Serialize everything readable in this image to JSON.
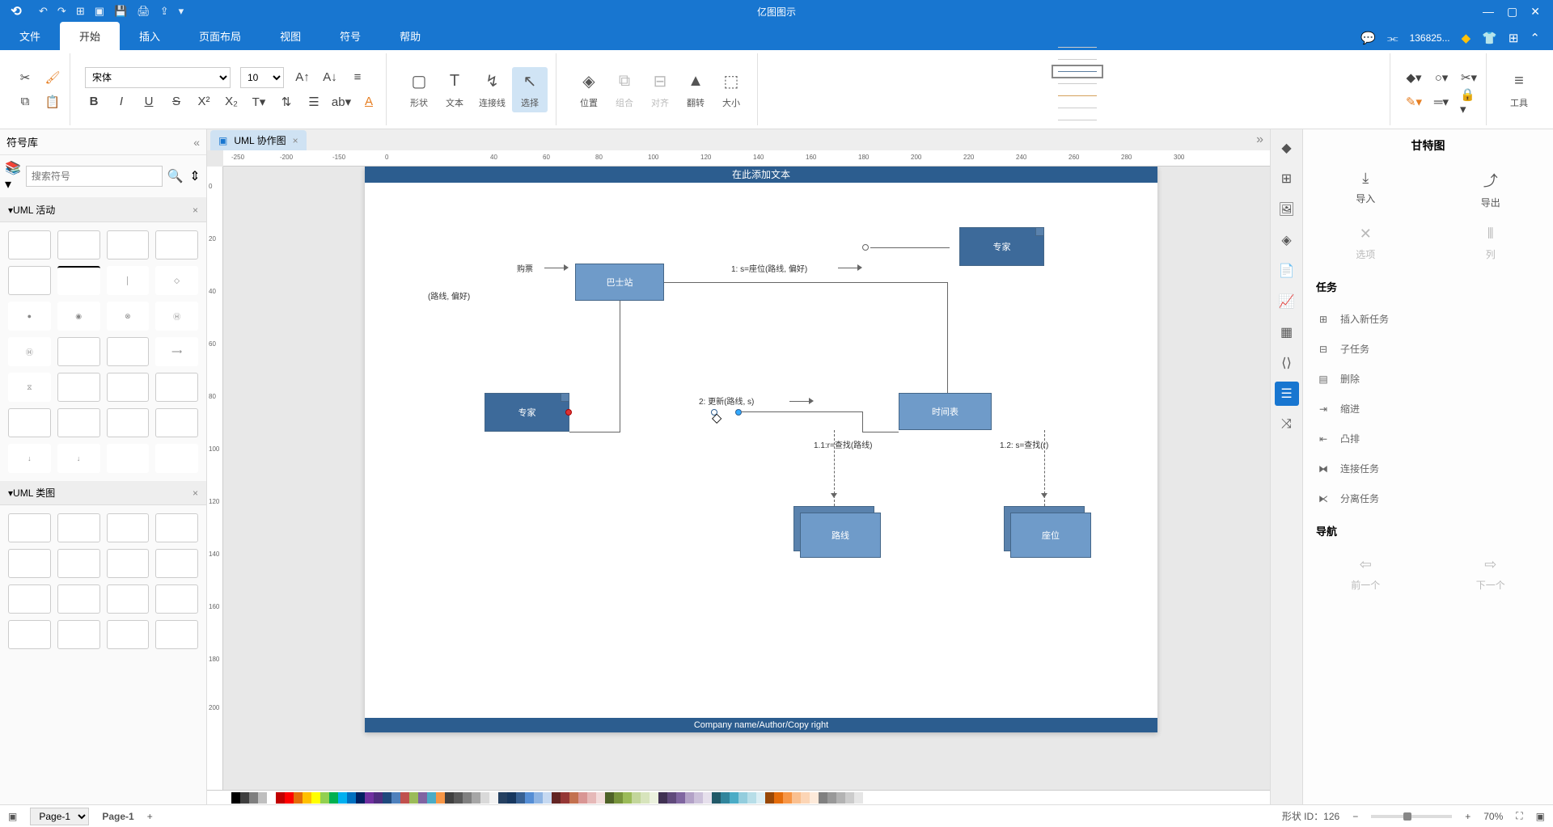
{
  "app": {
    "title": "亿图图示"
  },
  "menu": {
    "tabs": [
      "文件",
      "开始",
      "插入",
      "页面布局",
      "视图",
      "符号",
      "帮助"
    ],
    "active": 1,
    "user": "136825..."
  },
  "ribbon": {
    "font": {
      "family": "宋体",
      "size": "10"
    },
    "groups": {
      "shape": "形状",
      "text": "文本",
      "connector": "连接线",
      "select": "选择",
      "position": "位置",
      "combine": "组合",
      "align": "对齐",
      "flip": "翻转",
      "size": "大小",
      "tools": "工具"
    },
    "line_colors": [
      "#cccccc",
      "#cccccc",
      "#5b7ea0",
      "#cccccc",
      "#d4a05b",
      "#cccccc",
      "#cccccc",
      "#cccccc"
    ],
    "line_selected": 2
  },
  "symbols": {
    "panel_title": "符号库",
    "search_placeholder": "搜索符号",
    "cat1": "UML 活动",
    "cat2": "UML 类图"
  },
  "doc": {
    "tab": "UML 协作图"
  },
  "diagram": {
    "header": "在此添加文本",
    "footer": "Company name/Author/Copy right",
    "nodes": {
      "expert1": "专家",
      "bus": "巴士站",
      "expert2": "专家",
      "timetable": "时间表",
      "route": "路线",
      "seat": "座位"
    },
    "labels": {
      "buy": "购票",
      "pref": "(路线, 偏好)",
      "l1": "1: s=座位(路线, 偏好)",
      "l2": "2: 更新(路线, s)",
      "l11": "1.1:r=查找(路线)",
      "l12": "1.2: s=查找(r)"
    }
  },
  "gantt": {
    "title": "甘特图",
    "import": "导入",
    "export": "导出",
    "options": "选项",
    "columns": "列",
    "tasks_title": "任务",
    "items": [
      "插入新任务",
      "子任务",
      "删除",
      "缩进",
      "凸排",
      "连接任务",
      "分离任务"
    ],
    "nav_title": "导航",
    "prev": "前一个",
    "next": "下一个"
  },
  "status": {
    "page_sel": "Page-1",
    "page_lbl": "Page-1",
    "shape_id": "形状 ID：126",
    "zoom": "70%"
  },
  "colorbar": [
    "#000000",
    "#3f3f3f",
    "#7f7f7f",
    "#bfbfbf",
    "#ffffff",
    "#c00000",
    "#ff0000",
    "#e36c09",
    "#ffc000",
    "#ffff00",
    "#92d050",
    "#00b050",
    "#00b0f0",
    "#0070c0",
    "#002060",
    "#7030a0",
    "#4f2d7f",
    "#1f497d",
    "#4f81bd",
    "#c0504d",
    "#9bbb59",
    "#8064a2",
    "#4bacc6",
    "#f79646",
    "#404040",
    "#595959",
    "#808080",
    "#a6a6a6",
    "#d9d9d9",
    "#f2f2f2",
    "#254061",
    "#17375e",
    "#376092",
    "#558ed5",
    "#8eb4e3",
    "#c6d9f1",
    "#632523",
    "#953735",
    "#c3714f",
    "#d99694",
    "#e6b9b8",
    "#f2dcdb",
    "#4f6228",
    "#77933c",
    "#9bbb59",
    "#c3d69b",
    "#d7e4bc",
    "#ebf1de",
    "#403152",
    "#604a7b",
    "#8066a0",
    "#b3a2c7",
    "#ccc1da",
    "#e6e0ec",
    "#215968",
    "#31859c",
    "#4bacc6",
    "#93cddd",
    "#b7dee8",
    "#dbeef4",
    "#984807",
    "#e46c0a",
    "#f79646",
    "#fac090",
    "#fcd5b5",
    "#fdeada",
    "#808080",
    "#999999",
    "#b3b3b3",
    "#cccccc",
    "#e6e6e6"
  ]
}
